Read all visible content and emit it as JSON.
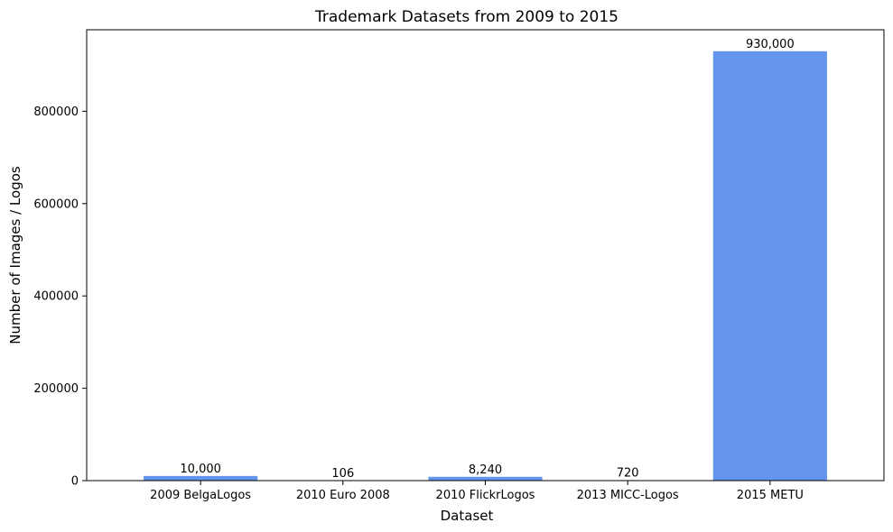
{
  "chart_data": {
    "type": "bar",
    "title": "Trademark Datasets from 2009 to 2015",
    "xlabel": "Dataset",
    "ylabel": "Number of Images / Logos",
    "categories": [
      "2009 BelgaLogos",
      "2010 Euro 2008",
      "2010 FlickrLogos",
      "2013 MICC-Logos",
      "2015 METU"
    ],
    "values": [
      10000,
      106,
      8240,
      720,
      930000
    ],
    "value_labels": [
      "10,000",
      "106",
      "8,240",
      "720",
      "930,000"
    ],
    "ylim": [
      0,
      976500
    ],
    "yticks": [
      0,
      200000,
      400000,
      600000,
      800000
    ],
    "ytick_labels": [
      "0",
      "200000",
      "400000",
      "600000",
      "800000"
    ],
    "bar_color": "#6495ed",
    "grid": false
  }
}
